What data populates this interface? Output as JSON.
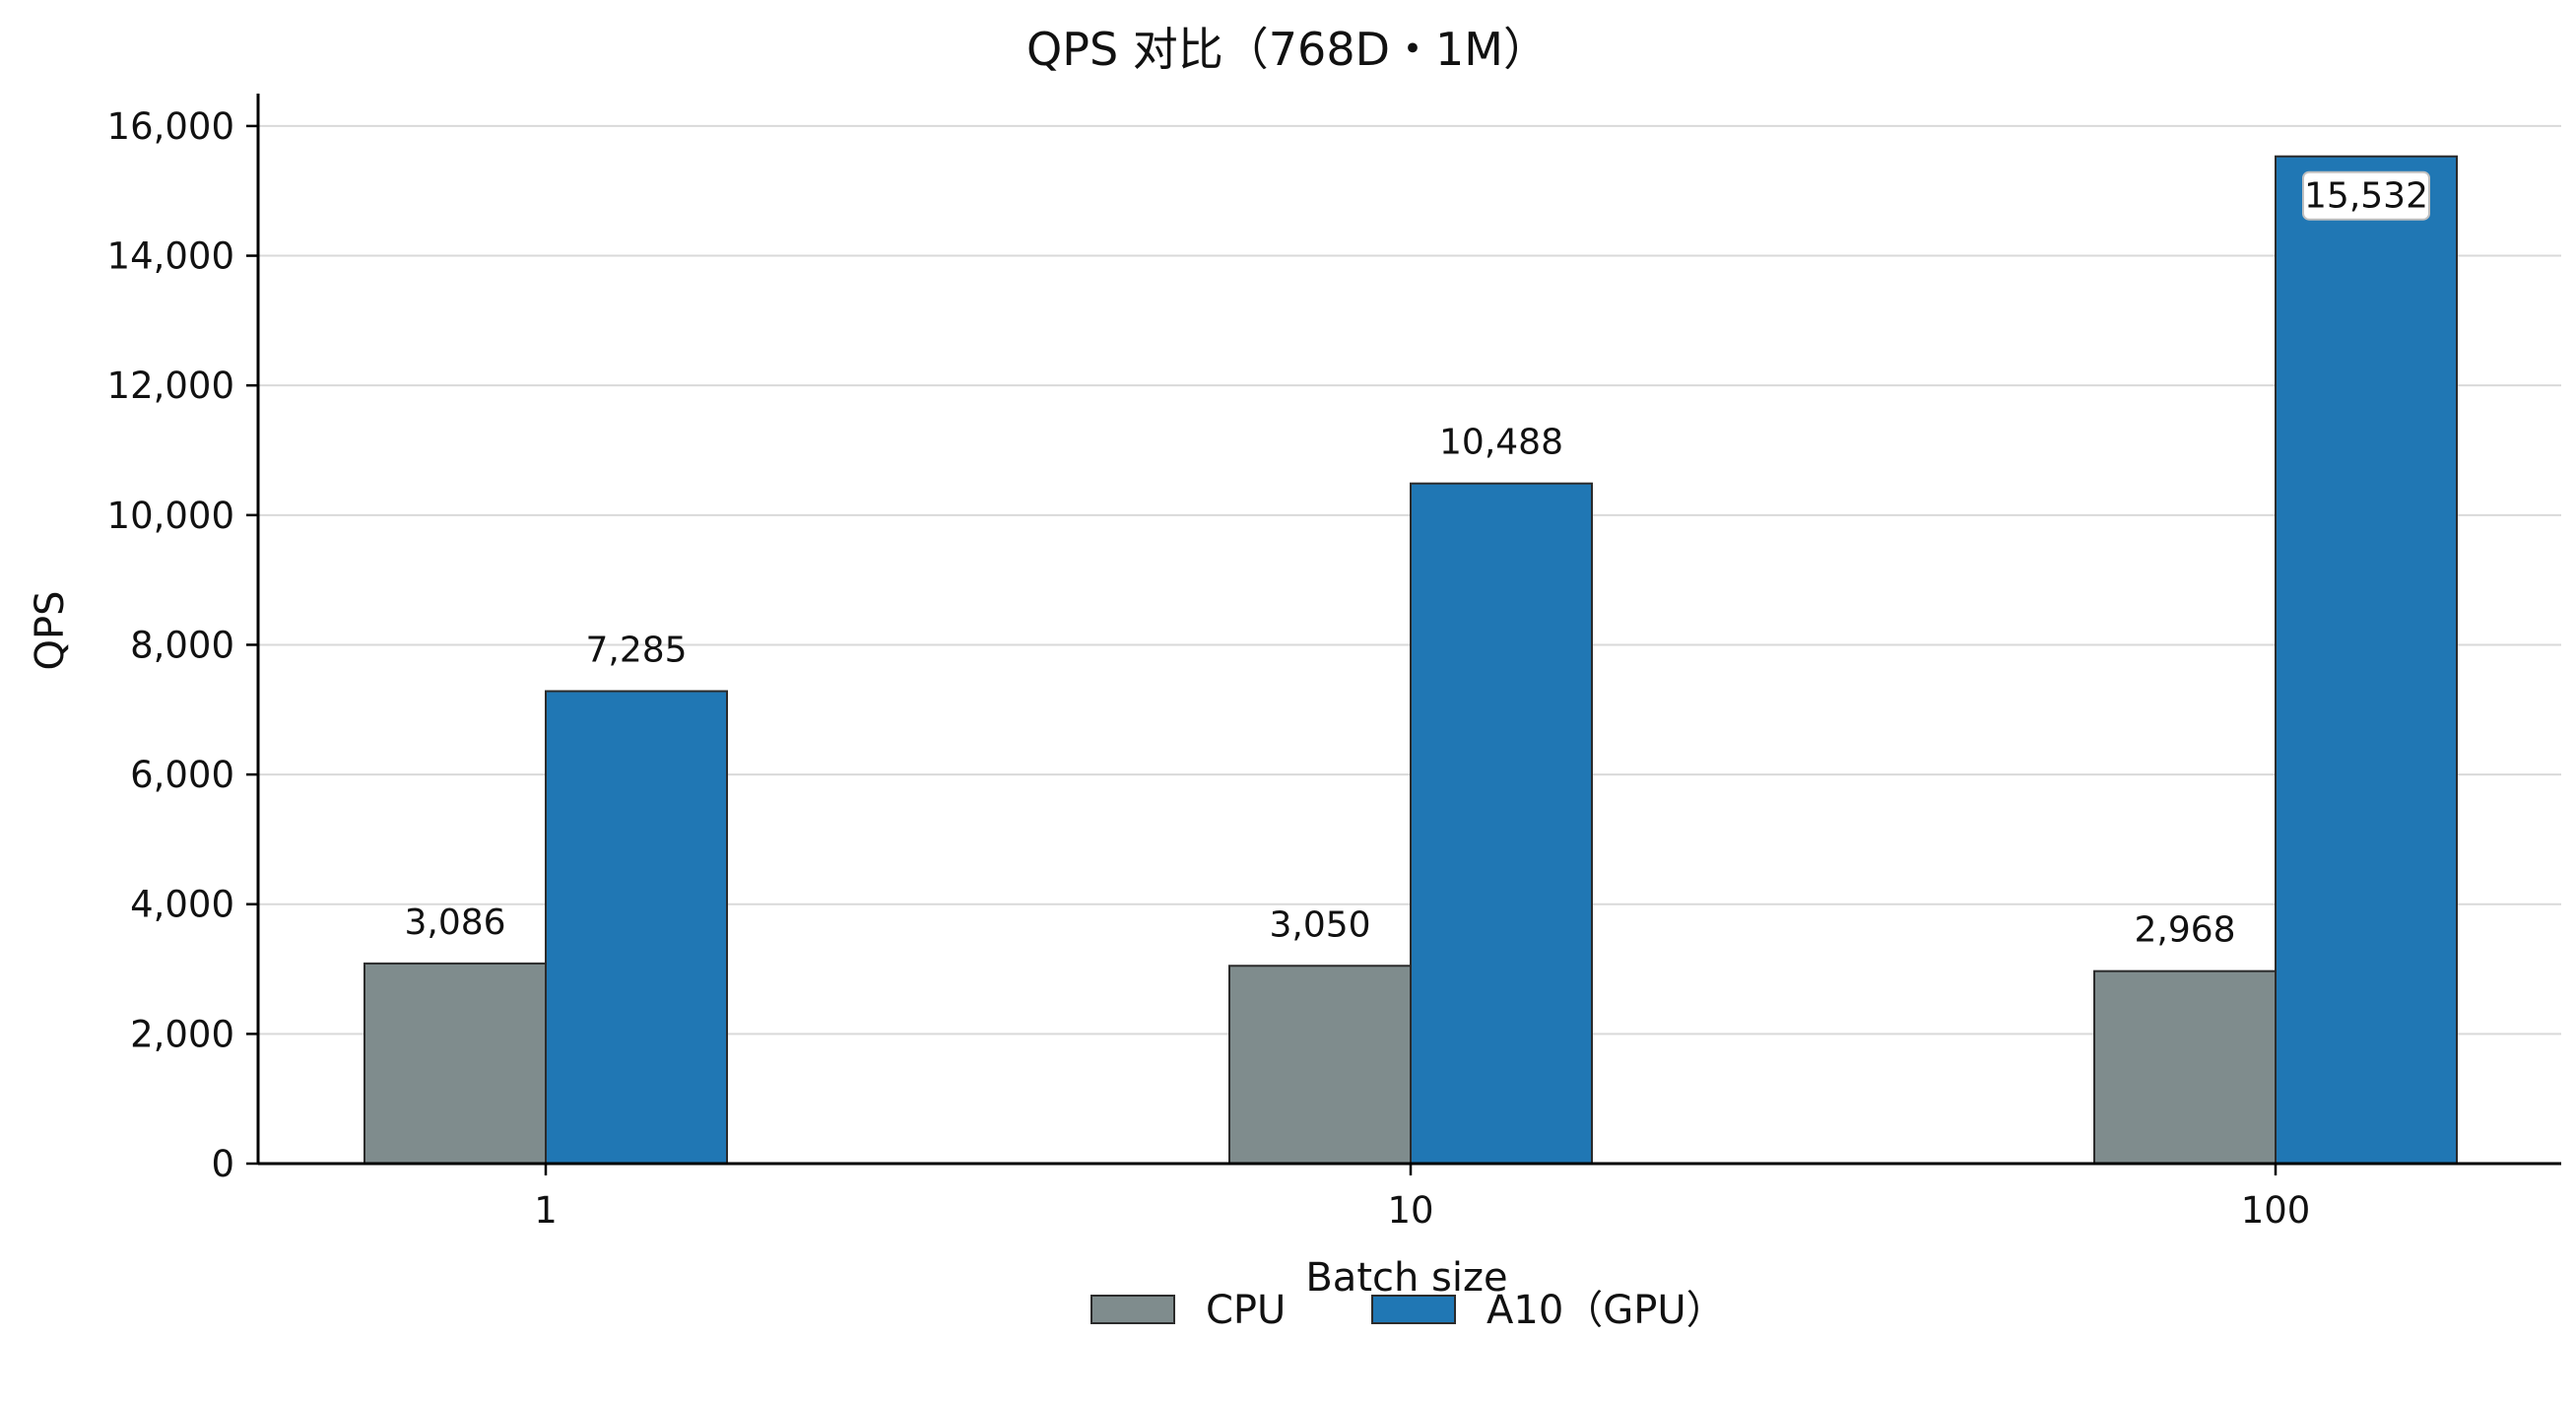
{
  "chart_data": {
    "type": "bar",
    "title": "QPS 对比（768D・1M）",
    "xlabel": "Batch size",
    "ylabel": "QPS",
    "categories": [
      "1",
      "10",
      "100"
    ],
    "series": [
      {
        "name": "CPU",
        "values": [
          3086,
          3050,
          2968
        ],
        "labels": [
          "3,086",
          "3,050",
          "2,968"
        ],
        "color": "#7f8c8d"
      },
      {
        "name": "A10（GPU）",
        "values": [
          7285,
          10488,
          15532
        ],
        "labels": [
          "7,285",
          "10,488",
          "15,532"
        ],
        "color": "#2077b4"
      }
    ],
    "ylim": [
      0,
      16500
    ],
    "yticks": [
      0,
      2000,
      4000,
      6000,
      8000,
      10000,
      12000,
      14000,
      16000
    ],
    "ytick_labels": [
      "0",
      "2,000",
      "4,000",
      "6,000",
      "8,000",
      "10,000",
      "12,000",
      "14,000",
      "16,000"
    ],
    "grid": "horizontal",
    "legend": "bottom-center",
    "boxed_label": {
      "series": 1,
      "index": 2
    }
  }
}
